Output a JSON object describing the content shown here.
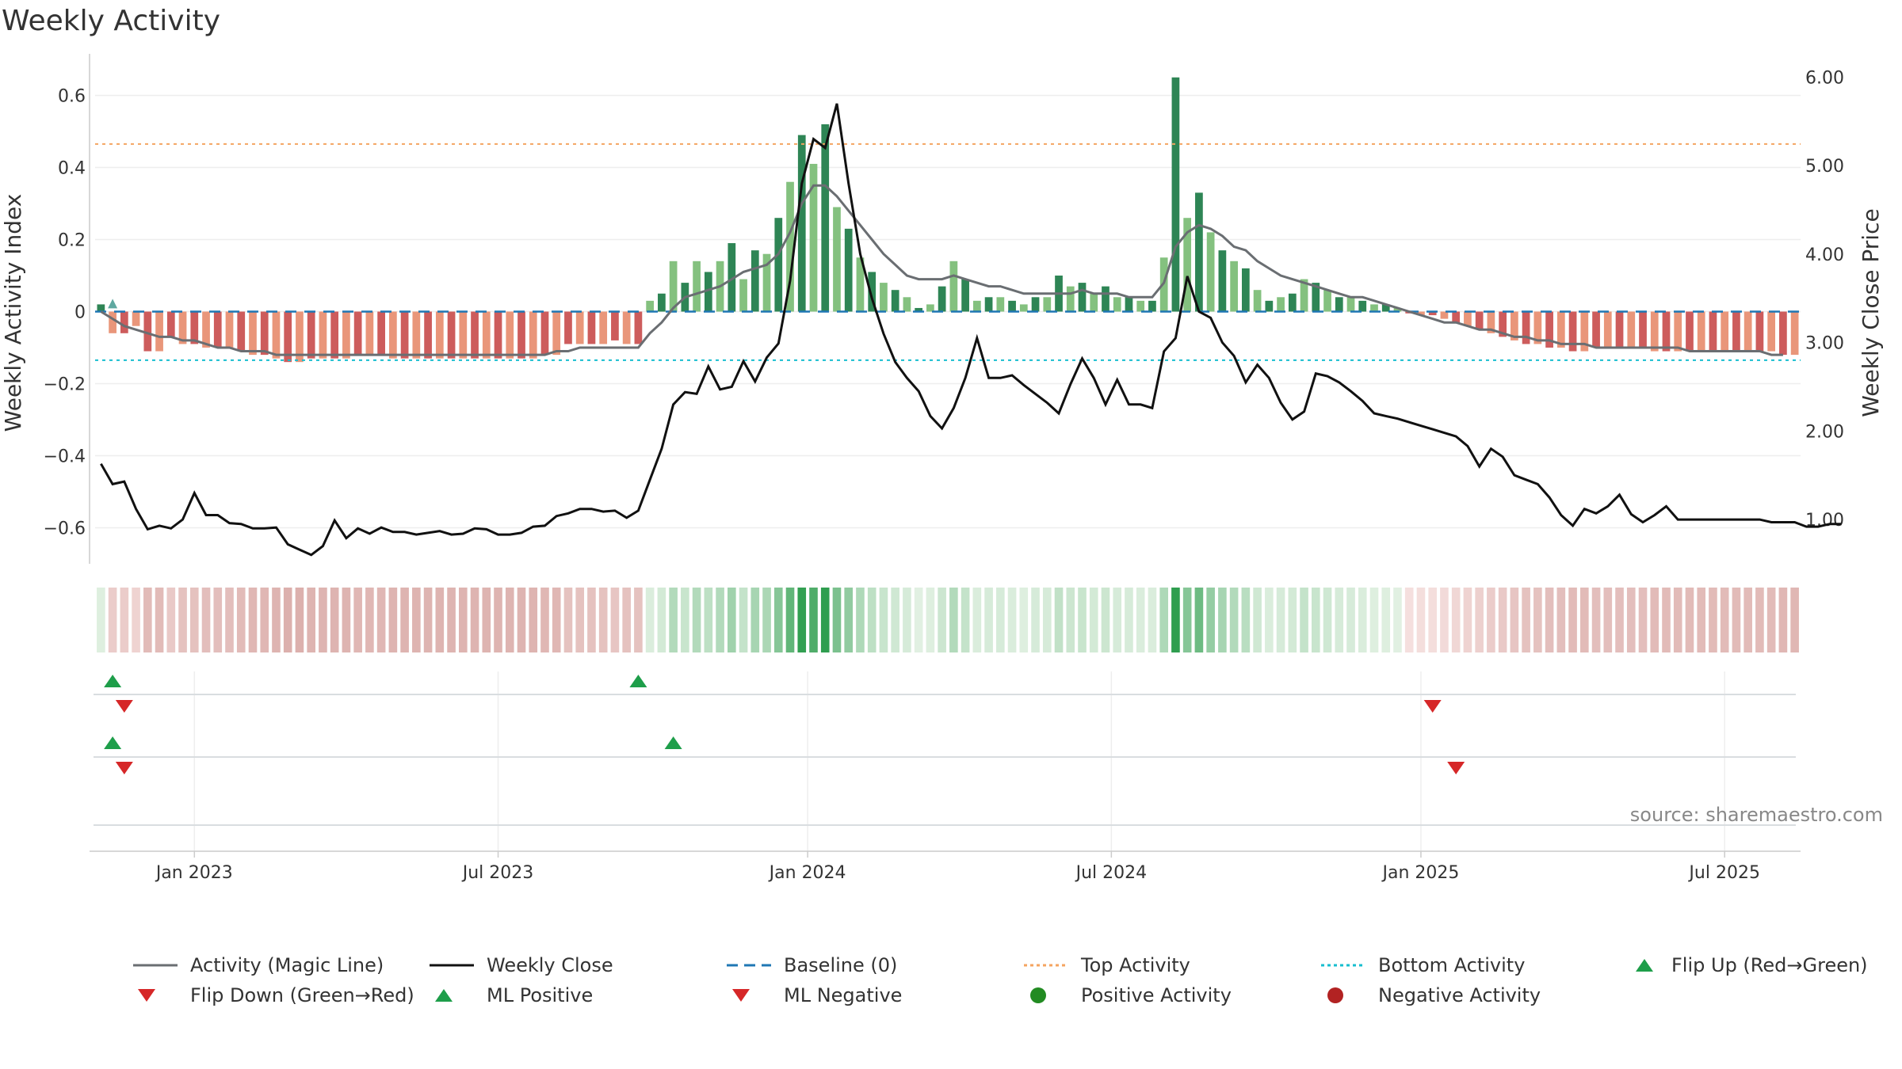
{
  "title": "Weekly Activity",
  "source": "source: sharemaestro.com",
  "colors": {
    "pos_dark": "#2e8555",
    "pos_light": "#84c17f",
    "neg_dark": "#cd5c5c",
    "neg_light": "#e9967a",
    "close_line": "#111111",
    "magic_line": "#6a6e72",
    "baseline": "#1f77b4",
    "top_line": "#f4a460",
    "bottom_line": "#17becf",
    "flip_up": "#1e9e4a",
    "flip_down": "#d62728"
  },
  "chart_data": {
    "type": "bar",
    "title": "Weekly Activity",
    "ylabel": "Weekly Activity Index",
    "y2label": "Weekly Close Price",
    "ylim": [
      -0.7,
      0.7
    ],
    "y2lim": [
      0.5,
      6.2
    ],
    "yticks": [
      {
        "v": 0.6,
        "l": "0.6"
      },
      {
        "v": 0.4,
        "l": "0.4"
      },
      {
        "v": 0.2,
        "l": "0.2"
      },
      {
        "v": 0,
        "l": "0"
      },
      {
        "v": -0.2,
        "l": "−0.2"
      },
      {
        "v": -0.4,
        "l": "−0.4"
      },
      {
        "v": -0.6,
        "l": "−0.6"
      }
    ],
    "y2ticks": [
      {
        "v": 6,
        "l": "6.00"
      },
      {
        "v": 5,
        "l": "5.00"
      },
      {
        "v": 4,
        "l": "4.00"
      },
      {
        "v": 3,
        "l": "3.00"
      },
      {
        "v": 2,
        "l": "2.00"
      },
      {
        "v": 1,
        "l": "1.00"
      }
    ],
    "xticks": [
      {
        "i": 8,
        "l": "Jan 2023"
      },
      {
        "i": 34,
        "l": "Jul 2023"
      },
      {
        "i": 60.5,
        "l": "Jan 2024"
      },
      {
        "i": 86.5,
        "l": "Jul 2024"
      },
      {
        "i": 113,
        "l": "Jan 2025"
      },
      {
        "i": 139,
        "l": "Jul 2025"
      }
    ],
    "top_activity": 0.465,
    "bottom_activity": -0.135,
    "activity": [
      0.02,
      -0.06,
      -0.06,
      -0.04,
      -0.11,
      -0.11,
      -0.07,
      -0.09,
      -0.09,
      -0.1,
      -0.1,
      -0.1,
      -0.11,
      -0.12,
      -0.12,
      -0.13,
      -0.14,
      -0.14,
      -0.13,
      -0.13,
      -0.13,
      -0.13,
      -0.12,
      -0.12,
      -0.12,
      -0.13,
      -0.13,
      -0.13,
      -0.13,
      -0.13,
      -0.13,
      -0.13,
      -0.13,
      -0.13,
      -0.13,
      -0.13,
      -0.13,
      -0.13,
      -0.12,
      -0.12,
      -0.09,
      -0.09,
      -0.09,
      -0.09,
      -0.08,
      -0.09,
      -0.09,
      0.03,
      0.05,
      0.14,
      0.08,
      0.14,
      0.11,
      0.14,
      0.19,
      0.09,
      0.17,
      0.16,
      0.26,
      0.36,
      0.49,
      0.41,
      0.52,
      0.29,
      0.23,
      0.15,
      0.11,
      0.08,
      0.06,
      0.04,
      0.01,
      0.02,
      0.07,
      0.14,
      0.09,
      0.03,
      0.04,
      0.04,
      0.03,
      0.02,
      0.04,
      0.04,
      0.1,
      0.07,
      0.08,
      0.05,
      0.07,
      0.04,
      0.04,
      0.03,
      0.03,
      0.15,
      0.65,
      0.26,
      0.33,
      0.22,
      0.17,
      0.14,
      0.12,
      0.06,
      0.03,
      0.04,
      0.05,
      0.09,
      0.08,
      0.06,
      0.04,
      0.04,
      0.03,
      0.02,
      0.02,
      0.01,
      -0.005,
      -0.01,
      -0.01,
      -0.02,
      -0.03,
      -0.04,
      -0.05,
      -0.06,
      -0.07,
      -0.08,
      -0.09,
      -0.09,
      -0.1,
      -0.1,
      -0.11,
      -0.11,
      -0.1,
      -0.1,
      -0.1,
      -0.1,
      -0.1,
      -0.11,
      -0.11,
      -0.11,
      -0.11,
      -0.11,
      -0.11,
      -0.11,
      -0.11,
      -0.11,
      -0.11,
      -0.11,
      -0.12,
      -0.12
    ],
    "magic_line": [
      0.0,
      -0.02,
      -0.04,
      -0.05,
      -0.06,
      -0.07,
      -0.07,
      -0.08,
      -0.08,
      -0.09,
      -0.1,
      -0.1,
      -0.11,
      -0.11,
      -0.11,
      -0.12,
      -0.12,
      -0.12,
      -0.12,
      -0.12,
      -0.12,
      -0.12,
      -0.12,
      -0.12,
      -0.12,
      -0.12,
      -0.12,
      -0.12,
      -0.12,
      -0.12,
      -0.12,
      -0.12,
      -0.12,
      -0.12,
      -0.12,
      -0.12,
      -0.12,
      -0.12,
      -0.12,
      -0.11,
      -0.11,
      -0.1,
      -0.1,
      -0.1,
      -0.1,
      -0.1,
      -0.1,
      -0.06,
      -0.03,
      0.01,
      0.04,
      0.05,
      0.06,
      0.07,
      0.09,
      0.11,
      0.12,
      0.13,
      0.16,
      0.22,
      0.3,
      0.35,
      0.35,
      0.32,
      0.28,
      0.24,
      0.2,
      0.16,
      0.13,
      0.1,
      0.09,
      0.09,
      0.09,
      0.1,
      0.09,
      0.08,
      0.07,
      0.07,
      0.06,
      0.05,
      0.05,
      0.05,
      0.05,
      0.05,
      0.06,
      0.05,
      0.05,
      0.05,
      0.04,
      0.04,
      0.04,
      0.08,
      0.18,
      0.22,
      0.24,
      0.23,
      0.21,
      0.18,
      0.17,
      0.14,
      0.12,
      0.1,
      0.09,
      0.08,
      0.07,
      0.06,
      0.05,
      0.04,
      0.04,
      0.03,
      0.02,
      0.01,
      0.0,
      -0.01,
      -0.02,
      -0.03,
      -0.03,
      -0.04,
      -0.05,
      -0.05,
      -0.06,
      -0.07,
      -0.07,
      -0.08,
      -0.08,
      -0.09,
      -0.09,
      -0.09,
      -0.1,
      -0.1,
      -0.1,
      -0.1,
      -0.1,
      -0.1,
      -0.1,
      -0.1,
      -0.11,
      -0.11,
      -0.11,
      -0.11,
      -0.11,
      -0.11,
      -0.11,
      -0.12,
      -0.12
    ],
    "weekly_close": [
      1.63,
      1.4,
      1.43,
      1.12,
      0.89,
      0.93,
      0.9,
      1.0,
      1.3,
      1.05,
      1.05,
      0.96,
      0.95,
      0.9,
      0.9,
      0.91,
      0.72,
      0.66,
      0.6,
      0.7,
      0.99,
      0.79,
      0.9,
      0.84,
      0.91,
      0.86,
      0.86,
      0.83,
      0.85,
      0.87,
      0.83,
      0.84,
      0.9,
      0.89,
      0.83,
      0.83,
      0.85,
      0.92,
      0.93,
      1.04,
      1.07,
      1.12,
      1.12,
      1.09,
      1.1,
      1.02,
      1.1,
      1.45,
      1.8,
      2.3,
      2.44,
      2.42,
      2.73,
      2.47,
      2.5,
      2.79,
      2.56,
      2.83,
      2.99,
      3.7,
      4.8,
      5.3,
      5.2,
      5.7,
      4.8,
      4.0,
      3.5,
      3.1,
      2.78,
      2.6,
      2.45,
      2.17,
      2.03,
      2.26,
      2.6,
      3.05,
      2.6,
      2.6,
      2.63,
      2.52,
      2.42,
      2.32,
      2.2,
      2.53,
      2.82,
      2.6,
      2.3,
      2.58,
      2.3,
      2.3,
      2.26,
      2.9,
      3.05,
      3.75,
      3.35,
      3.28,
      3.0,
      2.85,
      2.55,
      2.75,
      2.6,
      2.32,
      2.13,
      2.22,
      2.65,
      2.62,
      2.55,
      2.45,
      2.34,
      2.2,
      2.17,
      2.14,
      2.1,
      2.06,
      2.02,
      1.98,
      1.94,
      1.83,
      1.6,
      1.8,
      1.71,
      1.5,
      1.45,
      1.4,
      1.25,
      1.05,
      0.93,
      1.12,
      1.07,
      1.15,
      1.28,
      1.06,
      0.97,
      1.05,
      1.15,
      1.0,
      1.0,
      1.0,
      1.0,
      1.0,
      1.0,
      1.0,
      1.0,
      0.97,
      0.97,
      0.97,
      0.92,
      0.92,
      0.95,
      0.95
    ],
    "ml_positive_up": [
      1,
      46
    ],
    "ml_negative_down": [
      2,
      114
    ],
    "flip_up": [
      1,
      49
    ],
    "flip_down": [
      2,
      116
    ]
  },
  "legend": [
    {
      "label": "Activity (Magic Line)",
      "icon": "magic-line-icon"
    },
    {
      "label": "Weekly Close",
      "icon": "close-line-icon"
    },
    {
      "label": "Baseline (0)",
      "icon": "baseline-icon"
    },
    {
      "label": "Top Activity",
      "icon": "top-activity-icon"
    },
    {
      "label": "Bottom Activity",
      "icon": "bottom-activity-icon"
    },
    {
      "label": "Flip Up (Red→Green)",
      "icon": "triangle-up-icon"
    },
    {
      "label": "Flip Down (Green→Red)",
      "icon": "triangle-down-icon"
    },
    {
      "label": "ML Positive",
      "icon": "triangle-up-icon"
    },
    {
      "label": "ML Negative",
      "icon": "triangle-down-icon"
    },
    {
      "label": "Positive Activity",
      "icon": "green-dot-icon"
    },
    {
      "label": "Negative Activity",
      "icon": "red-dot-icon"
    }
  ]
}
